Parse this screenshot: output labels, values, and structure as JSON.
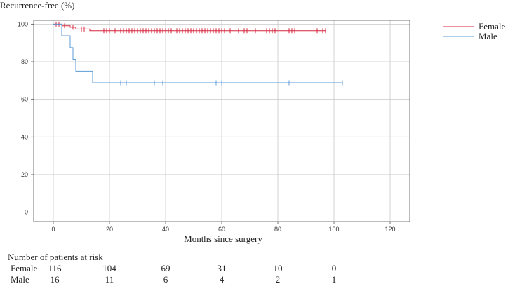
{
  "chart_data": {
    "type": "line",
    "subtype": "kaplan-meier step",
    "ylabel": "Recurrence-free (%)",
    "xlabel": "Months since surgery",
    "xlim": [
      -7,
      127
    ],
    "ylim": [
      -5,
      102
    ],
    "x_ticks": [
      0,
      20,
      40,
      60,
      80,
      100,
      120
    ],
    "y_ticks": [
      0,
      20,
      40,
      60,
      80,
      100
    ],
    "grid": true,
    "legend_position": "top-right",
    "series": [
      {
        "name": "Female",
        "color": "#d7263d",
        "steps": [
          [
            0,
            100
          ],
          [
            3,
            99.1
          ],
          [
            6,
            98.3
          ],
          [
            8,
            97.4
          ],
          [
            13,
            96.5
          ],
          [
            97,
            96.5
          ]
        ],
        "censor_marks": [
          1,
          2,
          4,
          7,
          10,
          11,
          18,
          19,
          20,
          22,
          24,
          25,
          26,
          27,
          28,
          29,
          30,
          31,
          32,
          33,
          34,
          35,
          36,
          37,
          38,
          39,
          40,
          41,
          42,
          44,
          45,
          46,
          47,
          48,
          49,
          50,
          51,
          52,
          53,
          54,
          55,
          56,
          57,
          58,
          59,
          60,
          61,
          63,
          66,
          68,
          69,
          72,
          76,
          77,
          78,
          79,
          84,
          85,
          86,
          94,
          96,
          97
        ]
      },
      {
        "name": "Male",
        "color": "#5b9bd5",
        "steps": [
          [
            0,
            100
          ],
          [
            3,
            93.8
          ],
          [
            6,
            87.5
          ],
          [
            7,
            81.3
          ],
          [
            8,
            75
          ],
          [
            14,
            68.8
          ],
          [
            103,
            68.8
          ]
        ],
        "censor_marks": [
          24,
          26,
          36,
          39,
          58,
          60,
          84,
          103
        ]
      }
    ],
    "risk_table": {
      "title": "Number of patients at risk",
      "time_points": [
        0,
        20,
        40,
        60,
        80,
        100
      ],
      "rows": [
        {
          "label": "Female",
          "values": [
            "116",
            "104",
            "69",
            "31",
            "10",
            "0"
          ]
        },
        {
          "label": "Male",
          "values": [
            "16",
            "11",
            "6",
            "4",
            "2",
            "1"
          ]
        }
      ]
    }
  }
}
